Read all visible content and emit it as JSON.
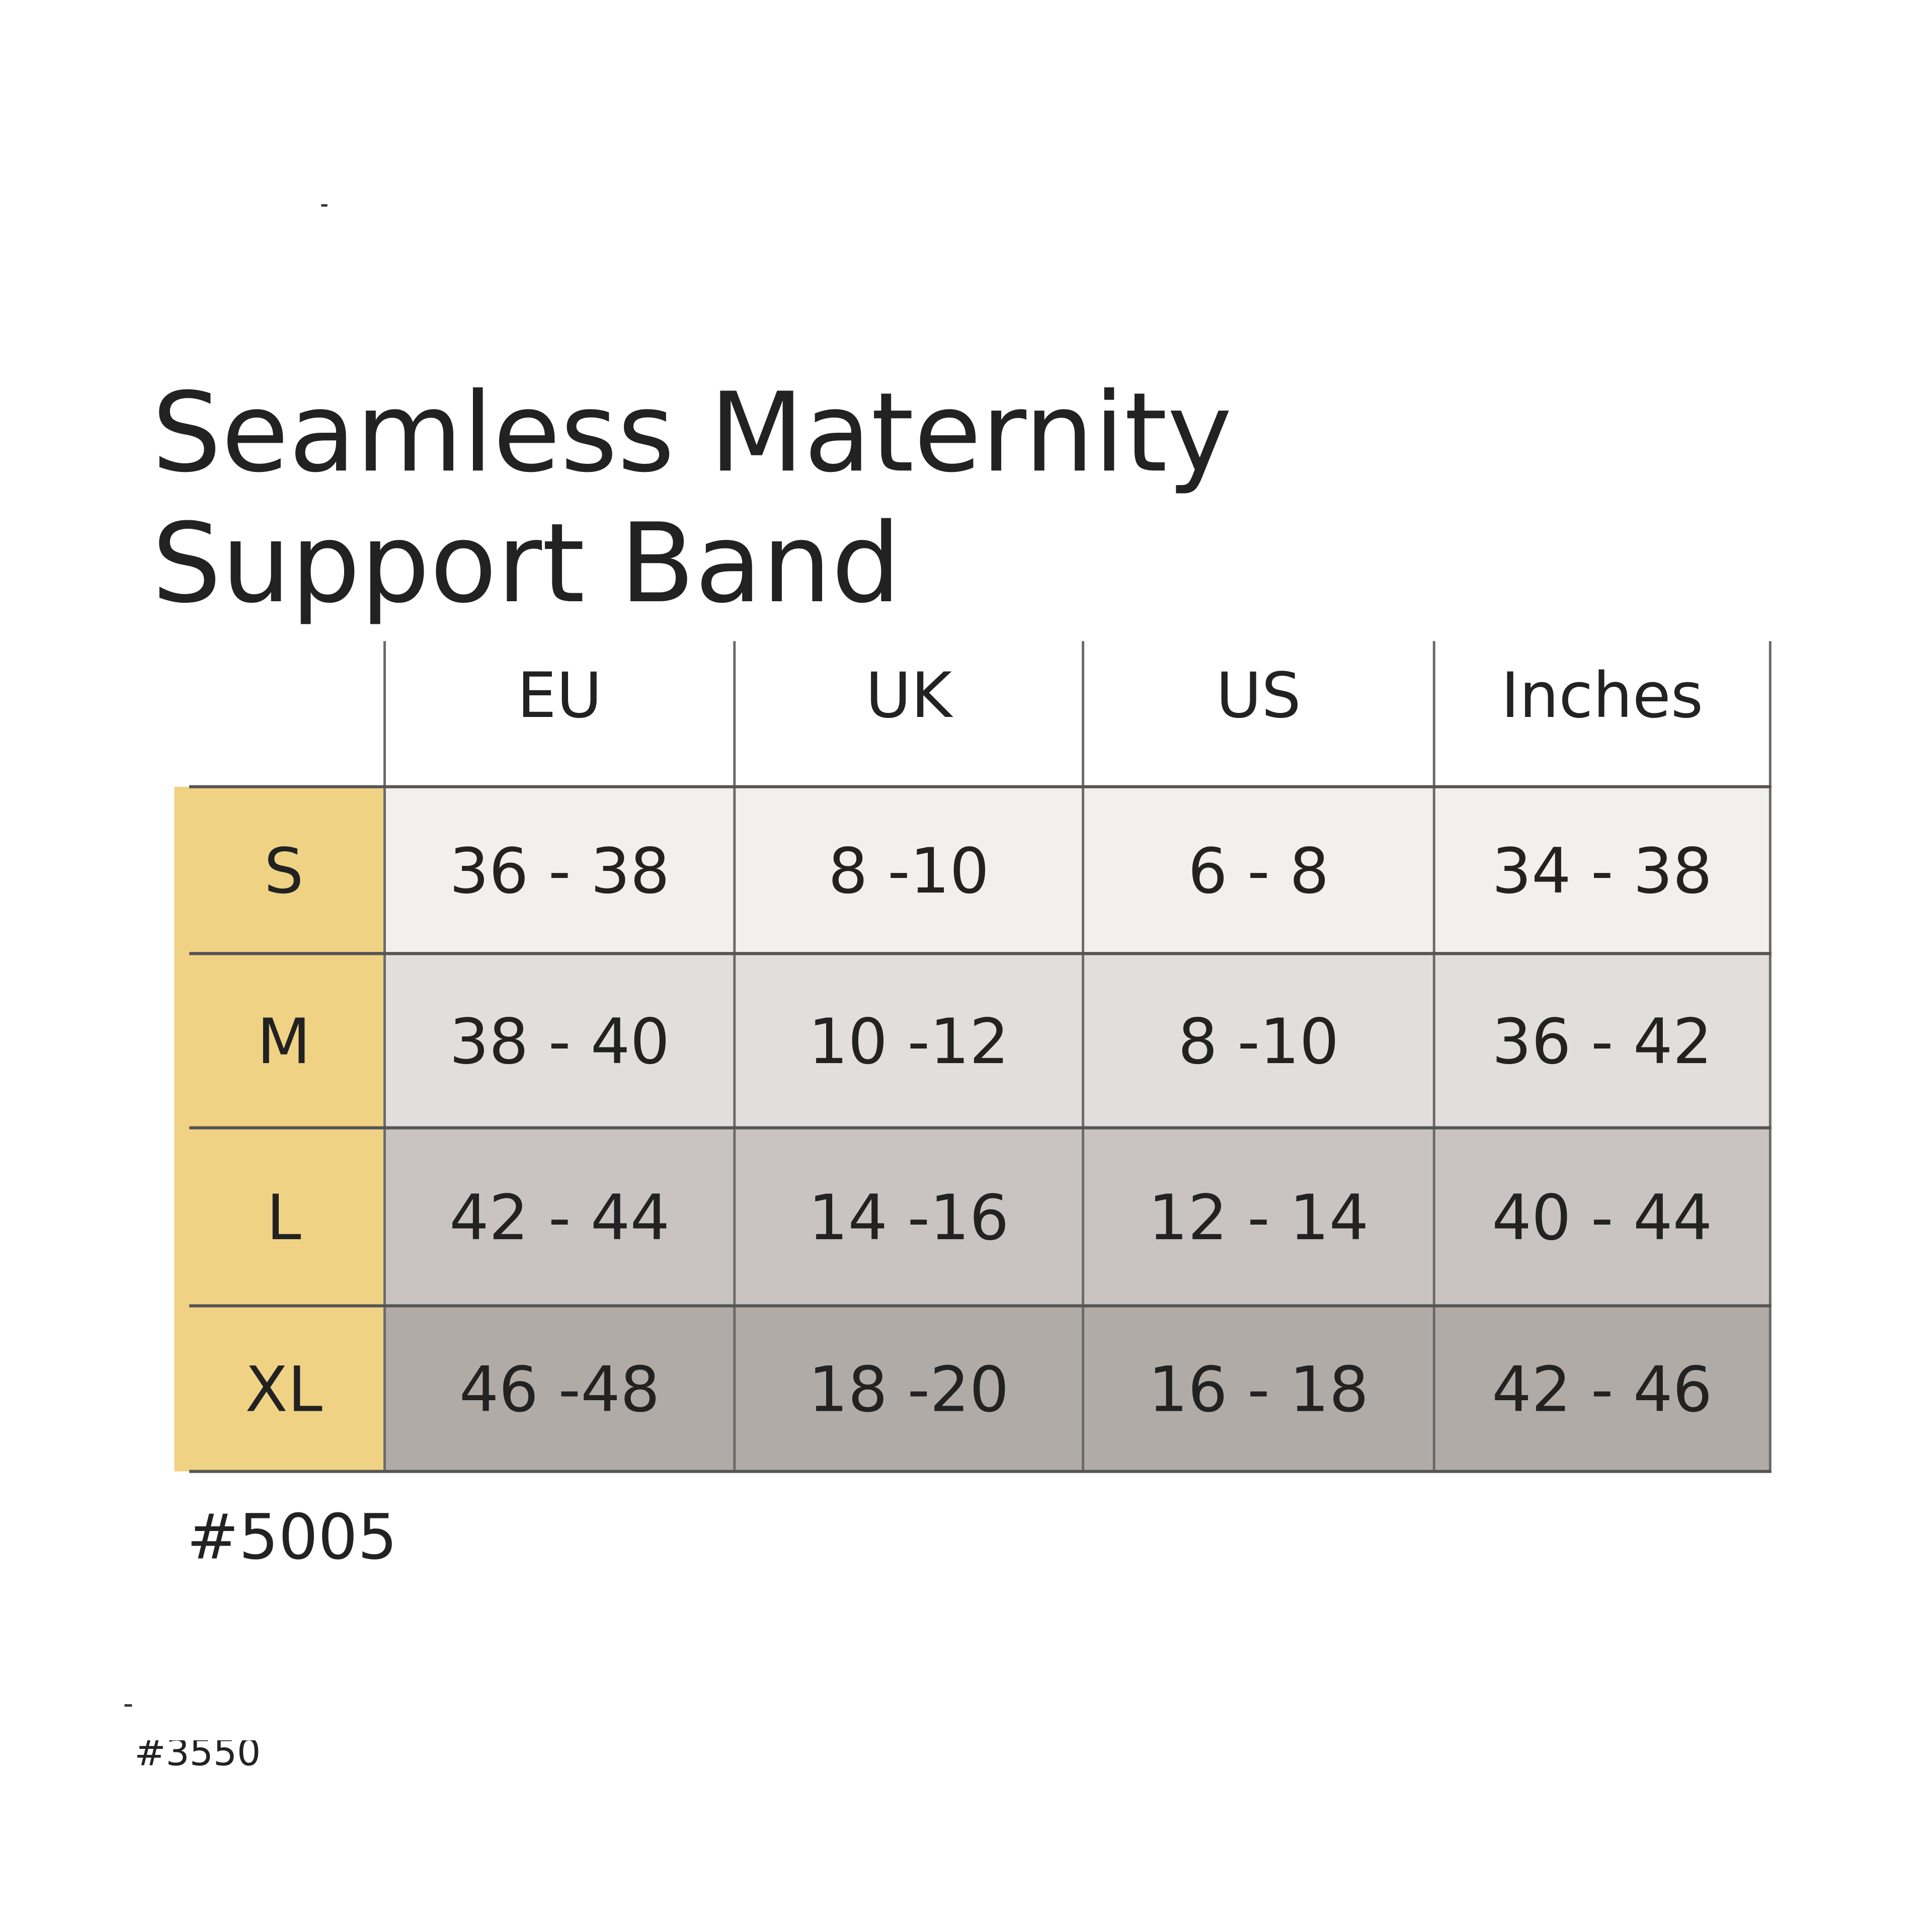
{
  "title": [
    "Seamless Maternity",
    "Support Band"
  ],
  "table": {
    "header": [
      "EU",
      "UK",
      "US",
      "Inches"
    ],
    "rows": [
      [
        "S",
        "36 - 38",
        "8 -10",
        "6 - 8",
        "34 - 38"
      ],
      [
        "M",
        "38 - 40",
        "10 -12",
        "8 -10",
        "36 - 42"
      ],
      [
        "L",
        "42 - 44",
        "14 -16",
        "12 - 14",
        "40 - 44"
      ],
      [
        "XL",
        "46 -48",
        "18 -20",
        "16 - 18",
        "42 - 46"
      ]
    ]
  },
  "footnote": "#5005",
  "cropped_note": "#3550"
}
